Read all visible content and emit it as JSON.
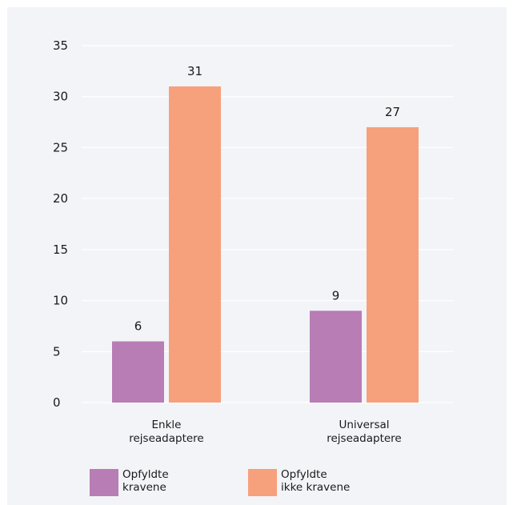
{
  "chart_data": {
    "type": "bar",
    "categories": [
      [
        "Enkle",
        "rejseadaptere"
      ],
      [
        "Universal",
        "rejseadaptere"
      ]
    ],
    "series": [
      {
        "name": [
          "Opfyldte",
          "kravene"
        ],
        "values": [
          6,
          9
        ],
        "color": "#b87db4"
      },
      {
        "name": [
          "Opfyldte",
          "ikke kravene"
        ],
        "values": [
          31,
          27
        ],
        "color": "#f7a07c"
      }
    ],
    "ylim": [
      0,
      35
    ],
    "yticks": [
      0,
      5,
      10,
      15,
      20,
      25,
      30,
      35
    ],
    "grid": true,
    "legend": "bottom",
    "title": "",
    "xlabel": "",
    "ylabel": ""
  }
}
